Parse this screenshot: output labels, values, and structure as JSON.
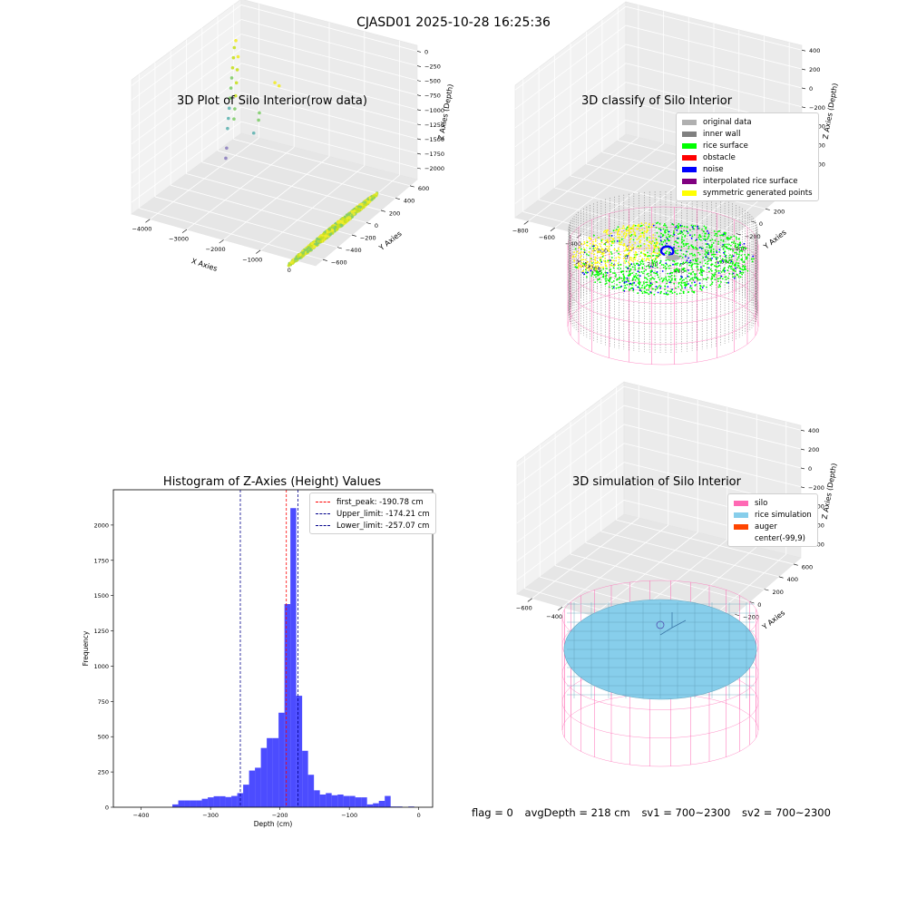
{
  "figure_title": "CJASD01 2025-10-28 16:25:36",
  "status": {
    "flag": "flag = 0",
    "avg_depth": "avgDepth = 218 cm",
    "sv1": "sv1 = 700~2300",
    "sv2": "sv2 = 700~2300"
  },
  "chart_data": [
    {
      "type": "scatter",
      "projection": "3d",
      "title": "3D Plot of Silo Interior(row data)",
      "xlabel": "X Axies",
      "ylabel": "Y Axies",
      "zlabel": "Z Axies (Depth)",
      "xlim": [
        -4500,
        500
      ],
      "ylim": [
        -700,
        700
      ],
      "zlim": [
        -2200,
        100
      ],
      "x_ticks": [
        -4000,
        -3000,
        -2000,
        -1000,
        0
      ],
      "y_ticks": [
        -600,
        -400,
        -200,
        0,
        200,
        400,
        600
      ],
      "z_ticks": [
        0,
        -250,
        -500,
        -750,
        -1000,
        -1250,
        -1500,
        -1750,
        -2000
      ],
      "grid": true,
      "colormap": [
        "#8d80bf",
        "#5fb3b0",
        "#7fcd6a",
        "#c8e020",
        "#f2eb2a"
      ],
      "series": [
        {
          "points": [
            [
              -4100,
              -450,
              -300
            ],
            [
              -4100,
              -430,
              -400
            ],
            [
              -4080,
              -410,
              -550
            ],
            [
              -4060,
              -390,
              -700
            ],
            [
              -4040,
              -370,
              -850
            ],
            [
              -4020,
              -350,
              -1000
            ],
            [
              -4000,
              -330,
              -1150
            ],
            [
              -3980,
              -310,
              -1300
            ],
            [
              -3960,
              -290,
              -1450
            ],
            [
              -3940,
              -270,
              -1600
            ],
            [
              -3900,
              -240,
              -1900
            ],
            [
              -3880,
              -220,
              -2050
            ]
          ]
        },
        {
          "points": [
            [
              -3450,
              -180,
              -200
            ],
            [
              -3430,
              -160,
              -400
            ],
            [
              -3410,
              -140,
              -600
            ],
            [
              -3390,
              -120,
              -800
            ],
            [
              -3370,
              -100,
              -1000
            ],
            [
              -3350,
              -80,
              -1150
            ]
          ]
        },
        {
          "points": [
            [
              -2600,
              -60,
              -900
            ],
            [
              -2580,
              -40,
              -1000
            ],
            [
              -2800,
              -80,
              -1300
            ]
          ]
        },
        {
          "points": [
            [
              -2000,
              20,
              -200
            ],
            [
              -1800,
              60,
              -180
            ]
          ]
        }
      ]
    },
    {
      "type": "scatter",
      "projection": "3d",
      "title": "3D classify of Silo Interior",
      "xlabel": "X Axies",
      "ylabel": "Y Axies",
      "zlabel": "Z Axies (Depth)",
      "xlim": [
        -900,
        500
      ],
      "ylim": [
        -700,
        700
      ],
      "zlim": [
        -950,
        450
      ],
      "x_ticks": [
        -800,
        -600,
        -400,
        -200,
        0,
        200,
        400
      ],
      "y_ticks": [
        -600,
        -400,
        -200,
        0,
        200,
        400,
        600
      ],
      "z_ticks": [
        400,
        200,
        0,
        -200,
        -400,
        -600,
        -800
      ],
      "grid": true,
      "legend": {
        "position": "upper right",
        "items": [
          {
            "label": "original data",
            "color": "#b0b0b0"
          },
          {
            "label": "inner wall",
            "color": "#808080"
          },
          {
            "label": "rice surface",
            "color": "#00ff00"
          },
          {
            "label": "obstacle",
            "color": "#ff0000"
          },
          {
            "label": "noise",
            "color": "#0000ff"
          },
          {
            "label": "interpolated rice surface",
            "color": "#800080"
          },
          {
            "label": "symmetric generated points",
            "color": "#ffff00"
          }
        ]
      },
      "silo": {
        "center": [
          -99,
          9
        ],
        "radius": 560,
        "z_range": [
          -900,
          0
        ],
        "color": "#ff69b4"
      },
      "rice_surface_depth": -250
    },
    {
      "type": "bar",
      "title": "Histogram of Z-Axies (Height) Values",
      "xlabel": "Depth (cm)",
      "ylabel": "Frequency",
      "xlim": [
        -440,
        20
      ],
      "ylim": [
        0,
        2250
      ],
      "x_ticks": [
        -400,
        -300,
        -200,
        -100,
        0
      ],
      "y_ticks": [
        0,
        250,
        500,
        750,
        1000,
        1250,
        1500,
        1750,
        2000
      ],
      "bar_color": "#0000ff",
      "bin_width": 8.5,
      "bins": [
        [
          -355,
          20
        ],
        [
          -346.5,
          48
        ],
        [
          -338,
          48
        ],
        [
          -329.5,
          48
        ],
        [
          -321,
          48
        ],
        [
          -312.5,
          60
        ],
        [
          -304,
          70
        ],
        [
          -295.5,
          78
        ],
        [
          -287,
          78
        ],
        [
          -278.5,
          72
        ],
        [
          -270,
          80
        ],
        [
          -261.5,
          100
        ],
        [
          -253,
          160
        ],
        [
          -244.5,
          260
        ],
        [
          -236,
          280
        ],
        [
          -227.5,
          420
        ],
        [
          -219,
          490
        ],
        [
          -210.5,
          490
        ],
        [
          -202,
          670
        ],
        [
          -193.5,
          1440
        ],
        [
          -185,
          2120
        ],
        [
          -176.5,
          790
        ],
        [
          -168,
          400
        ],
        [
          -159.5,
          230
        ],
        [
          -151,
          120
        ],
        [
          -142.5,
          90
        ],
        [
          -134,
          100
        ],
        [
          -125.5,
          85
        ],
        [
          -117,
          90
        ],
        [
          -108.5,
          80
        ],
        [
          -100,
          80
        ],
        [
          -91.5,
          70
        ],
        [
          -83,
          70
        ],
        [
          -74.5,
          20
        ],
        [
          -66,
          28
        ],
        [
          -57.5,
          45
        ],
        [
          -49,
          80
        ],
        [
          -40.5,
          5
        ],
        [
          -32,
          5
        ],
        [
          -15,
          5
        ]
      ],
      "lines": [
        {
          "label": "first_peak: -190.78 cm",
          "x": -190.78,
          "color": "#ff0000"
        },
        {
          "label": "Upper_limit: -174.21 cm",
          "x": -174.21,
          "color": "#00008b"
        },
        {
          "label": "Lower_limit: -257.07 cm",
          "x": -257.07,
          "color": "#00008b"
        }
      ],
      "legend": "upper right"
    },
    {
      "type": "scatter",
      "projection": "3d",
      "title": "3D simulation of Silo Interior",
      "xlabel": "X Axies",
      "ylabel": "Y Axies",
      "zlabel": "Z Axies (Depth)",
      "xlim": [
        -700,
        500
      ],
      "ylim": [
        -700,
        700
      ],
      "zlim": [
        -950,
        450
      ],
      "x_ticks": [
        -600,
        -400,
        -200,
        0,
        200,
        400
      ],
      "y_ticks": [
        -600,
        -400,
        -200,
        0,
        200,
        400,
        600
      ],
      "z_ticks": [
        400,
        200,
        0,
        -200,
        -400,
        -600,
        -800
      ],
      "grid": true,
      "legend": {
        "position": "upper right",
        "items": [
          {
            "label": "silo",
            "color": "#ff69b4"
          },
          {
            "label": "rice simulation",
            "color": "#87ceeb"
          },
          {
            "label": "auger",
            "color": "#ff4500"
          },
          {
            "label": "center(-99,9)",
            "color": ""
          }
        ]
      },
      "silo": {
        "center": [
          -99,
          9
        ],
        "radius": 560,
        "z_range": [
          -900,
          0
        ],
        "color": "#ff69b4"
      },
      "rice_surface_depth": -218
    }
  ]
}
